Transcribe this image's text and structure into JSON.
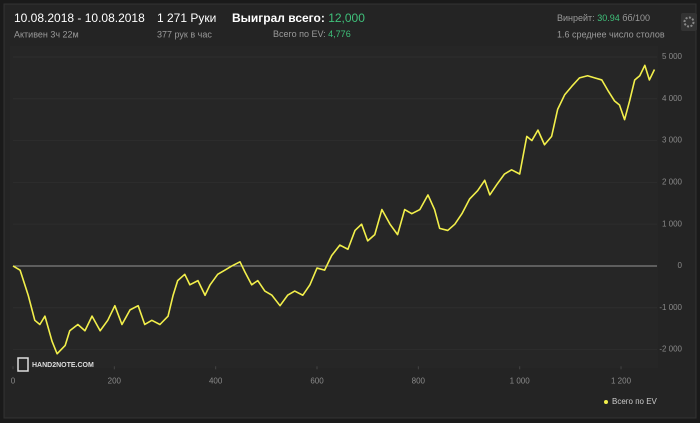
{
  "header": {
    "date_range": "10.08.2018 - 10.08.2018",
    "active": "Активен 3ч 22м",
    "hands": "1 271 Руки",
    "hands_per_hour": "377 рук в час",
    "won_label": "Выиграл всего:",
    "won_value": "12,000",
    "ev_label": "Всего по EV:",
    "ev_value": "4,776",
    "winrate_label": "Винрейт:",
    "winrate_value": "30.94",
    "winrate_unit": "бб/100",
    "tables": "1.6 среднее число столов"
  },
  "logo": "HAND2NOTE.COM",
  "chart_data": {
    "type": "line",
    "x": [
      0,
      14,
      30,
      43,
      53,
      63,
      77,
      87,
      103,
      112,
      128,
      142,
      156,
      172,
      187,
      201,
      215,
      231,
      247,
      260,
      274,
      290,
      306,
      316,
      325,
      339,
      349,
      365,
      379,
      389,
      404,
      418,
      432,
      448,
      458,
      471,
      483,
      497,
      511,
      527,
      542,
      556,
      572,
      586,
      600,
      615,
      629,
      645,
      661,
      675,
      688,
      700,
      714,
      728,
      744,
      759,
      773,
      787,
      803,
      819,
      832,
      842,
      858,
      872,
      886,
      901,
      917,
      931,
      941,
      955,
      970,
      984,
      1000,
      1014,
      1024,
      1036,
      1049,
      1063,
      1075,
      1089,
      1103,
      1118,
      1134,
      1148,
      1162,
      1174,
      1187,
      1197,
      1207,
      1217,
      1227,
      1237,
      1247,
      1256,
      1266
    ],
    "series": [
      {
        "name": "Всего по EV",
        "color": "#f2ef4b",
        "values": [
          0,
          -100,
          -700,
          -1300,
          -1400,
          -1200,
          -1800,
          -2100,
          -1900,
          -1550,
          -1400,
          -1550,
          -1200,
          -1550,
          -1300,
          -950,
          -1400,
          -1050,
          -950,
          -1400,
          -1300,
          -1400,
          -1200,
          -700,
          -350,
          -200,
          -450,
          -350,
          -700,
          -450,
          -200,
          -100,
          0,
          100,
          -150,
          -450,
          -350,
          -600,
          -700,
          -950,
          -700,
          -600,
          -700,
          -450,
          -50,
          -100,
          250,
          500,
          400,
          850,
          1000,
          600,
          750,
          1350,
          1000,
          750,
          1350,
          1250,
          1350,
          1700,
          1350,
          900,
          850,
          1000,
          1250,
          1600,
          1800,
          2050,
          1700,
          1950,
          2200,
          2300,
          2200,
          3100,
          3000,
          3250,
          2900,
          3100,
          3750,
          4100,
          4300,
          4500,
          4550,
          4500,
          4450,
          4200,
          3950,
          3850,
          3500,
          3950,
          4450,
          4550,
          4800,
          4450,
          4700
        ]
      }
    ],
    "xlim": [
      0,
      1271
    ],
    "ylim": [
      -2400,
      5200
    ],
    "xticks": [
      0,
      200,
      400,
      600,
      800,
      {
        "value": 1000,
        "label": "1 000"
      },
      {
        "value": 1200,
        "label": "1 200"
      }
    ],
    "yticks": [
      {
        "value": -2000,
        "label": "-2 000"
      },
      {
        "value": -1000,
        "label": "-1 000"
      },
      0,
      {
        "value": 1000,
        "label": "1 000"
      },
      {
        "value": 2000,
        "label": "2 000"
      },
      {
        "value": 3000,
        "label": "3 000"
      },
      {
        "value": 4000,
        "label": "4 000"
      },
      {
        "value": 5000,
        "label": "5 000"
      }
    ],
    "grid": true,
    "legend": "bottom-right"
  }
}
